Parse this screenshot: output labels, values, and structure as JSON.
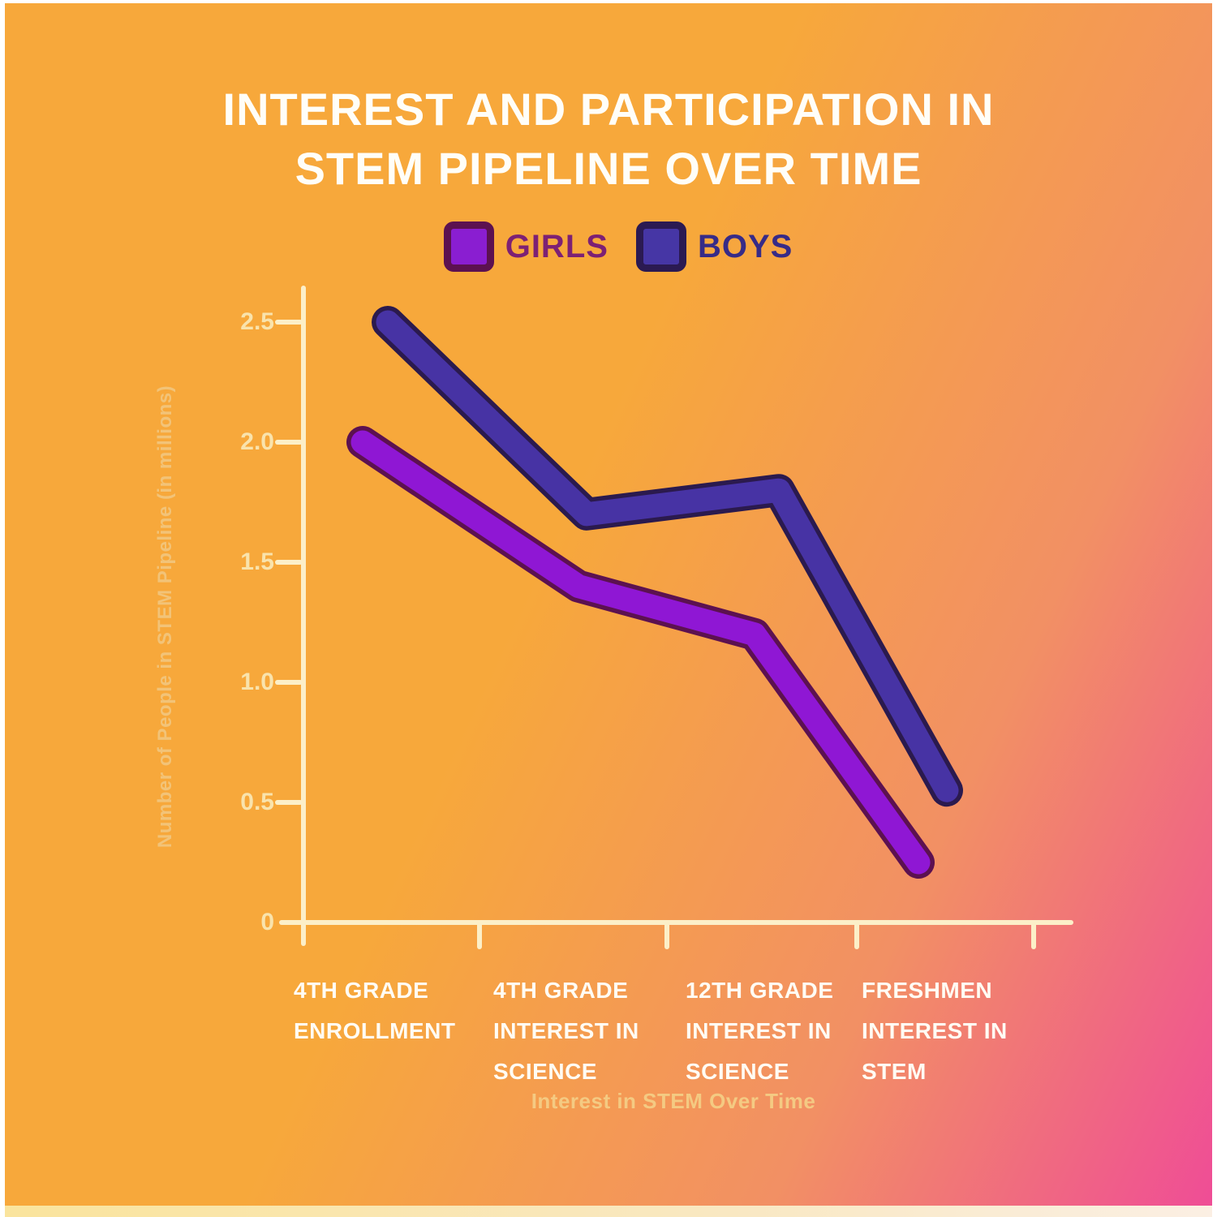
{
  "page": {
    "background_top": "#F7A83B",
    "background_bottom_right": "#EF4D96",
    "accent_girls": "#8F17D4",
    "accent_boys": "#4733A4"
  },
  "header": {
    "title_lines": [
      "INTEREST AND PARTICIPATION IN",
      "STEM PIPELINE OVER TIME"
    ],
    "title_color": "#FFFFFF"
  },
  "legend": {
    "items": [
      {
        "label": "GIRLS",
        "swatch_fill": "#8A1ED1",
        "swatch_border": "#5C1150",
        "label_color": "#7D2074"
      },
      {
        "label": "BOYS",
        "swatch_fill": "#4636A5",
        "swatch_border": "#2B1A52",
        "label_color": "#372B87"
      }
    ]
  },
  "y_axis": {
    "title": "Number of People in STEM Pipeline (in millions)",
    "tick_labels": [
      "2.5",
      "2.0",
      "1.5",
      "1.0",
      "0.5",
      "0"
    ]
  },
  "x_axis": {
    "title": "Interest in STEM Over Time",
    "category_lines": [
      [
        "4TH GRADE",
        "ENROLLMENT"
      ],
      [
        "4TH GRADE",
        "INTEREST IN",
        "SCIENCE"
      ],
      [
        "12TH GRADE",
        "INTEREST IN",
        "SCIENCE"
      ],
      [
        "FRESHMEN",
        "INTEREST IN",
        "STEM"
      ]
    ]
  },
  "chart_data": {
    "type": "line",
    "title": "INTEREST AND PARTICIPATION IN STEM PIPELINE OVER TIME",
    "categories": [
      "4TH GRADE ENROLLMENT",
      "4TH GRADE INTEREST IN SCIENCE",
      "12TH GRADE INTEREST IN SCIENCE",
      "FRESHMEN INTEREST IN STEM"
    ],
    "series": [
      {
        "name": "GIRLS",
        "color": "#8F17D4",
        "outline": "#5C1150",
        "values": [
          2.0,
          1.4,
          1.2,
          0.25
        ]
      },
      {
        "name": "BOYS",
        "color": "#4733A4",
        "outline": "#2B1A4E",
        "values": [
          2.5,
          1.7,
          1.8,
          0.55
        ]
      }
    ],
    "xlabel": "Interest in STEM Over Time",
    "ylabel": "Number of People in STEM Pipeline (in millions)",
    "yticks": [
      2.5,
      2.0,
      1.5,
      1.0,
      0.5,
      0
    ],
    "ylim": [
      0,
      2.7
    ],
    "grid": false,
    "legend_position": "top",
    "axis_color": "#FCEFC8"
  }
}
